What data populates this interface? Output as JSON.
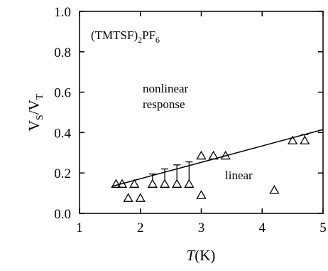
{
  "chart_data": {
    "type": "scatter",
    "xlim": [
      1,
      5
    ],
    "ylim": [
      0,
      1.0
    ],
    "x_ticks": [
      "1",
      "2",
      "3",
      "4",
      "5"
    ],
    "y_ticks": [
      "0.0",
      "0.2",
      "0.4",
      "0.6",
      "0.8",
      "1.0"
    ],
    "xlabel": {
      "var": "T",
      "unit": "(K)"
    },
    "ylabel": {
      "base": "V",
      "sub1": "S",
      "slash": "/V",
      "sub2": "T"
    },
    "title": {
      "main": "(TMTSF)",
      "sub1": "2",
      "mid": "PF",
      "sub2": "6"
    },
    "annotations": {
      "nonlinear_line1": "nonlinear",
      "nonlinear_line2": "response",
      "linear": "linear"
    },
    "points": [
      {
        "x": 1.6,
        "y": 0.145
      },
      {
        "x": 1.7,
        "y": 0.145
      },
      {
        "x": 1.8,
        "y": 0.075
      },
      {
        "x": 1.9,
        "y": 0.145
      },
      {
        "x": 2.0,
        "y": 0.075
      },
      {
        "x": 2.2,
        "y": 0.145,
        "err_hi": 0.195
      },
      {
        "x": 2.4,
        "y": 0.145,
        "err_hi": 0.22
      },
      {
        "x": 2.6,
        "y": 0.145,
        "err_hi": 0.24
      },
      {
        "x": 2.8,
        "y": 0.145,
        "err_hi": 0.255
      },
      {
        "x": 3.0,
        "y": 0.285
      },
      {
        "x": 3.0,
        "y": 0.09
      },
      {
        "x": 3.2,
        "y": 0.285
      },
      {
        "x": 3.4,
        "y": 0.285
      },
      {
        "x": 4.2,
        "y": 0.115
      },
      {
        "x": 4.5,
        "y": 0.36
      },
      {
        "x": 4.7,
        "y": 0.36,
        "err_hi": 0.39
      }
    ],
    "fit_line": {
      "x": [
        1.55,
        5.0
      ],
      "y": [
        0.135,
        0.415
      ]
    },
    "grid": false,
    "marker": "open-triangle"
  }
}
